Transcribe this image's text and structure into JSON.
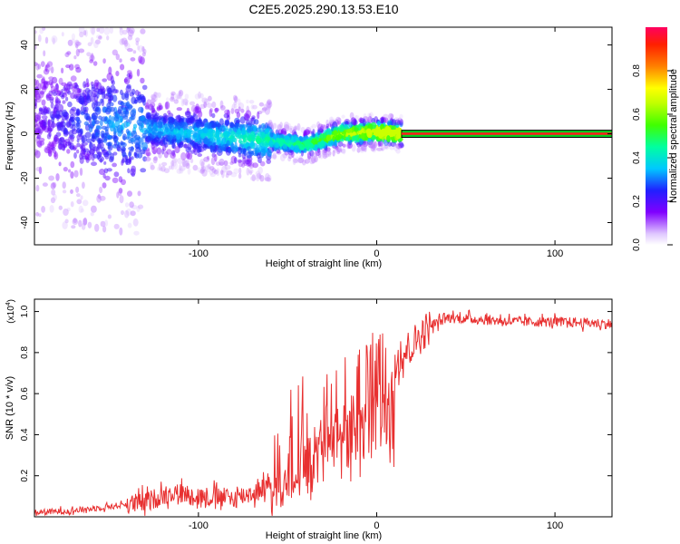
{
  "title": "C2E5.2025.290.13.53.E10",
  "chart_data": [
    {
      "type": "heatmap",
      "title": "C2E5.2025.290.13.53.E10",
      "xlabel": "Height of straight line (km)",
      "ylabel": "Frequency (Hz)",
      "xlim": [
        -192,
        132
      ],
      "ylim": [
        -50,
        48
      ],
      "xticks": [
        -100,
        0,
        100
      ],
      "yticks": [
        -40,
        -20,
        0,
        20,
        40
      ],
      "tick_labels_x": [
        "-100",
        "0",
        "100"
      ],
      "tick_labels_y": [
        "-40",
        "-20",
        "0",
        "20",
        "40"
      ],
      "colorbar": {
        "label": "Normalized spectral amplitude",
        "range": [
          0.0,
          1.0
        ],
        "ticks": [
          0.0,
          0.2,
          0.4,
          0.6,
          0.8
        ],
        "tick_labels": [
          "0.0",
          "0.2",
          "0.4",
          "0.6",
          "0.8"
        ]
      },
      "ridge": {
        "description_points_x": [
          -192,
          -150,
          -100,
          -60,
          -40,
          -20,
          0,
          12,
          132
        ],
        "frequency_hz": [
          8,
          4,
          0,
          -3,
          -5,
          0,
          1,
          0,
          0
        ],
        "amplitude": [
          0.1,
          0.25,
          0.3,
          0.4,
          0.45,
          0.6,
          0.75,
          0.8,
          0.9
        ]
      },
      "colors": {
        "plot_border": "#000000",
        "ridge_line": "#ff1a1a",
        "band": "#00d020"
      }
    },
    {
      "type": "line",
      "xlabel": "Height of straight line (km)",
      "ylabel": "SNR (10 * v/v)",
      "multiplier_label": "(x10",
      "multiplier_exponent": "4",
      "multiplier_close": ")",
      "xlim": [
        -192,
        132
      ],
      "ylim": [
        0,
        1.06
      ],
      "xticks": [
        -100,
        0,
        100
      ],
      "yticks": [
        0.2,
        0.4,
        0.6,
        0.8,
        1.0
      ],
      "tick_labels_x": [
        "-100",
        "0",
        "100"
      ],
      "tick_labels_y": [
        "0.2",
        "0.4",
        "0.6",
        "0.8",
        "1.0"
      ],
      "x": [
        -192,
        -170,
        -150,
        -130,
        -115,
        -100,
        -80,
        -65,
        -55,
        -45,
        -35,
        -25,
        -20,
        -15,
        -10,
        -5,
        0,
        5,
        10,
        15,
        20,
        30,
        40,
        60,
        80,
        100,
        132
      ],
      "y": [
        0.02,
        0.03,
        0.05,
        0.07,
        0.12,
        0.1,
        0.09,
        0.13,
        0.22,
        0.32,
        0.4,
        0.5,
        0.55,
        0.55,
        0.6,
        0.65,
        0.7,
        0.72,
        0.76,
        0.8,
        0.84,
        0.93,
        0.97,
        0.96,
        0.95,
        0.95,
        0.94
      ],
      "color": "#e83030"
    }
  ]
}
